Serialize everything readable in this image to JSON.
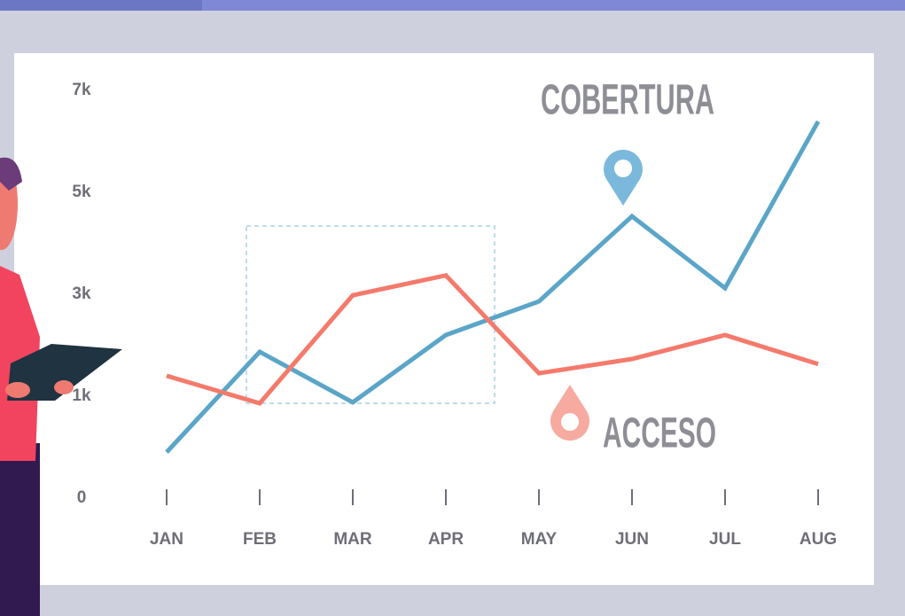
{
  "chart_data": {
    "type": "line",
    "categories": [
      "JAN",
      "FEB",
      "MAR",
      "APR",
      "MAY",
      "JUN",
      "JUL",
      "AUG"
    ],
    "series": [
      {
        "name": "COBERTURA",
        "color": "#5aa5c8",
        "values": [
          450,
          1870,
          940,
          2200,
          2860,
          4530,
          3120,
          6390
        ]
      },
      {
        "name": "ACCESO",
        "color": "#f47a6c",
        "values": [
          1400,
          930,
          2980,
          3370,
          1450,
          1730,
          2200,
          1630
        ]
      }
    ],
    "ylim": [
      0,
      7000
    ],
    "yticks": [
      0,
      {
        "value": 1000,
        "label": "1k"
      },
      {
        "value": 3000,
        "label": "3k"
      },
      {
        "value": 5000,
        "label": "5k"
      },
      {
        "value": 7000,
        "label": "7k"
      }
    ]
  }
}
